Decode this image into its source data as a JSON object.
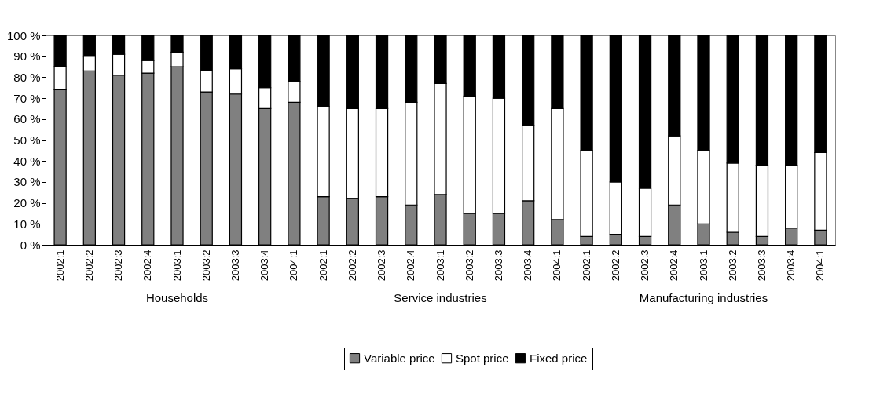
{
  "chart_data": {
    "type": "bar",
    "stacked": true,
    "categories": [
      "2002:1",
      "2002:2",
      "2002:3",
      "2002:4",
      "2003:1",
      "2003:2",
      "2003:3",
      "2003:4",
      "2004:1",
      "2002:1",
      "2002:2",
      "2002:3",
      "2002:4",
      "2003:1",
      "2003:2",
      "2003:3",
      "2003:4",
      "2004:1",
      "2002:1",
      "2002:2",
      "2002:3",
      "2002:4",
      "2003:1",
      "2003:2",
      "2003:3",
      "2003:4",
      "2004:1"
    ],
    "series": [
      {
        "name": "Variable price",
        "color": "#808080",
        "values": [
          74,
          83,
          81,
          82,
          85,
          73,
          72,
          65,
          68,
          23,
          22,
          23,
          19,
          24,
          15,
          15,
          21,
          12,
          4,
          5,
          4,
          19,
          10,
          6,
          4,
          8,
          7
        ]
      },
      {
        "name": "Spot price",
        "color": "#ffffff",
        "values": [
          11,
          7,
          10,
          6,
          7,
          10,
          12,
          10,
          10,
          43,
          43,
          42,
          49,
          53,
          56,
          55,
          36,
          53,
          41,
          25,
          23,
          33,
          35,
          33,
          34,
          30,
          37
        ]
      },
      {
        "name": "Fixed price",
        "color": "#000000",
        "values": [
          15,
          10,
          9,
          12,
          8,
          17,
          16,
          25,
          22,
          34,
          35,
          35,
          32,
          23,
          29,
          30,
          43,
          35,
          55,
          70,
          73,
          48,
          55,
          61,
          62,
          62,
          56
        ]
      }
    ],
    "ylim": [
      0,
      100
    ],
    "yticks": [
      {
        "value": 0,
        "label": "0 %"
      },
      {
        "value": 10,
        "label": "10 %"
      },
      {
        "value": 20,
        "label": "20 %"
      },
      {
        "value": 30,
        "label": "30 %"
      },
      {
        "value": 40,
        "label": "40 %"
      },
      {
        "value": 50,
        "label": "50 %"
      },
      {
        "value": 60,
        "label": "60 %"
      },
      {
        "value": 70,
        "label": "70 %"
      },
      {
        "value": 80,
        "label": "80 %"
      },
      {
        "value": 90,
        "label": "90 %"
      },
      {
        "value": 100,
        "label": "100 %"
      }
    ],
    "annotations": [
      "Households",
      "Service industries",
      "Manufacturing industries"
    ],
    "grid": false,
    "legend": "bottom"
  }
}
